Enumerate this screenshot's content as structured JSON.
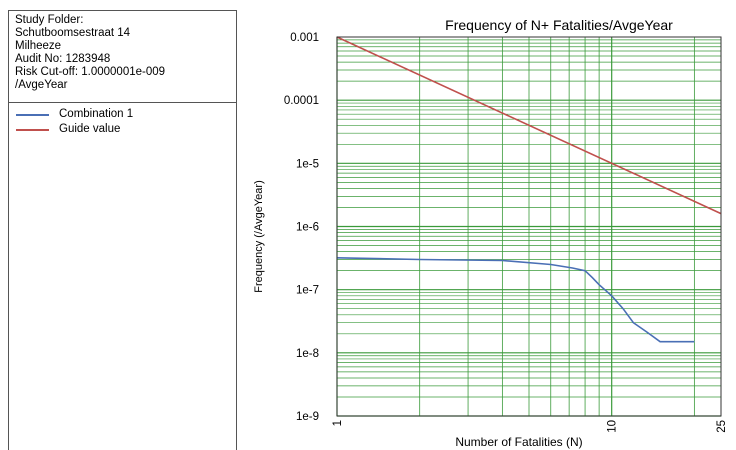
{
  "info": {
    "lines": [
      "Study Folder:",
      "Schutboomsestraat 14",
      "Milheeze",
      "Audit No: 1283948",
      "Risk Cut-off: 1.0000001e-009",
      "/AvgeYear"
    ]
  },
  "legend": [
    {
      "name": "Combination 1",
      "color": "#4a6fb5"
    },
    {
      "name": "Guide value",
      "color": "#c0504d"
    }
  ],
  "chart_data": {
    "type": "line",
    "title": "Frequency of N+ Fatalities/AvgeYear",
    "xlabel": "Number of Fatalities (N)",
    "ylabel": "Frequency (/AvgeYear)",
    "x_scale": "log",
    "y_scale": "log",
    "xlim": [
      1,
      25
    ],
    "ylim": [
      1e-09,
      0.001
    ],
    "x_tick_labels": [
      {
        "value": 1,
        "label": "1"
      },
      {
        "value": 10,
        "label": "10"
      },
      {
        "value": 25,
        "label": "25"
      }
    ],
    "y_tick_labels": [
      {
        "value": 0.001,
        "label": "0.001"
      },
      {
        "value": 0.0001,
        "label": "0.0001"
      },
      {
        "value": 1e-05,
        "label": "1e-5"
      },
      {
        "value": 1e-06,
        "label": "1e-6"
      },
      {
        "value": 1e-07,
        "label": "1e-7"
      },
      {
        "value": 1e-08,
        "label": "1e-8"
      },
      {
        "value": 1e-09,
        "label": "1e-9"
      }
    ],
    "grid": true,
    "grid_color": "#3a9a3a",
    "series": [
      {
        "name": "Combination 1",
        "color": "#4a6fb5",
        "x": [
          1,
          2,
          4,
          6,
          7.2,
          8,
          8.5,
          9,
          10,
          11,
          12,
          13.5,
          15,
          20
        ],
        "y": [
          3.2e-07,
          3e-07,
          2.9e-07,
          2.5e-07,
          2.2e-07,
          2e-07,
          1.55e-07,
          1.2e-07,
          8e-08,
          5e-08,
          3e-08,
          2.1e-08,
          1.5e-08,
          1.5e-08
        ]
      },
      {
        "name": "Guide value",
        "color": "#c0504d",
        "x": [
          1,
          25
        ],
        "y": [
          0.001,
          1.6e-06
        ]
      }
    ]
  }
}
